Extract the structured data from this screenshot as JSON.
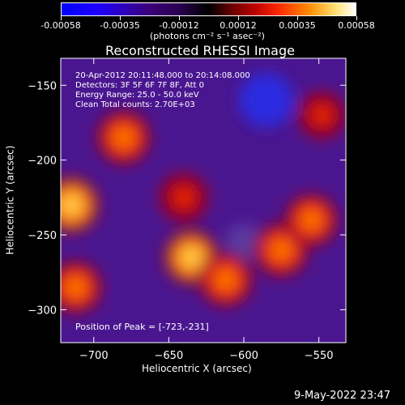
{
  "colorbar": {
    "tick_labels": [
      "-0.00058",
      "-0.00035",
      "-0.00012",
      "0.00012",
      "0.00035",
      "0.00058"
    ],
    "unit_label": "(photons cm⁻² s⁻¹ asec⁻²)"
  },
  "chart_data": {
    "type": "heatmap",
    "title": "Reconstructed RHESSI Image",
    "xlabel": "Heliocentric X (arcsec)",
    "ylabel": "Heliocentric Y (arcsec)",
    "xlim": [
      -722,
      -532
    ],
    "ylim": [
      -322,
      -132
    ],
    "x_ticks": [
      -700,
      -650,
      -600,
      -550
    ],
    "y_ticks": [
      -150,
      -200,
      -250,
      -300
    ],
    "colors": {
      "background": "#000000",
      "low": "#0000ff",
      "mid_low": "#3b007a",
      "mid": "#000000",
      "high": "#ff2a00",
      "peak": "#ffffff"
    },
    "annotations": [
      "20-Apr-2012 20:11:48.000 to 20:14:08.000",
      "Detectors: 3F 5F 6F 7F 8F, Att 0",
      "Energy Range: 25.0 - 50.0 keV",
      "Clean    Total counts: 2.70E+03"
    ],
    "peak_label": "Position of Peak = [-723,-231]",
    "peak_position": [
      -723,
      -231
    ],
    "hot_spots": [
      {
        "x": -680,
        "y": -185,
        "intensity": 0.9
      },
      {
        "x": -715,
        "y": -230,
        "intensity": 1.0
      },
      {
        "x": -712,
        "y": -285,
        "intensity": 0.85
      },
      {
        "x": -640,
        "y": -225,
        "intensity": 0.75
      },
      {
        "x": -635,
        "y": -265,
        "intensity": 0.95
      },
      {
        "x": -612,
        "y": -280,
        "intensity": 0.9
      },
      {
        "x": -575,
        "y": -260,
        "intensity": 0.9
      },
      {
        "x": -555,
        "y": -240,
        "intensity": 0.85
      },
      {
        "x": -548,
        "y": -170,
        "intensity": 0.7
      }
    ],
    "cold_spots": [
      {
        "x": -585,
        "y": -160,
        "intensity": 0.8
      },
      {
        "x": -600,
        "y": -255,
        "intensity": 0.3
      }
    ]
  },
  "timestamp": "9-May-2022 23:47"
}
